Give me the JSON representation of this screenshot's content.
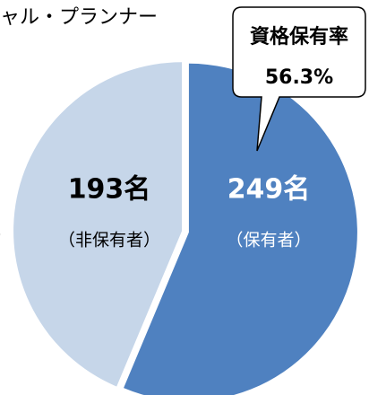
{
  "chart_data": {
    "type": "pie",
    "title": "ャル・プランナー",
    "categories": [
      "（保有者）",
      "（非保有者）"
    ],
    "values": [
      249,
      193
    ],
    "value_labels": [
      "249名",
      "193名"
    ],
    "colors": [
      "#4f81c0",
      "#c6d6e9"
    ],
    "label_colors": [
      "#ffffff",
      "#000000"
    ],
    "callout": [
      "資格保有率",
      "56.3%"
    ],
    "annotation": "）"
  }
}
